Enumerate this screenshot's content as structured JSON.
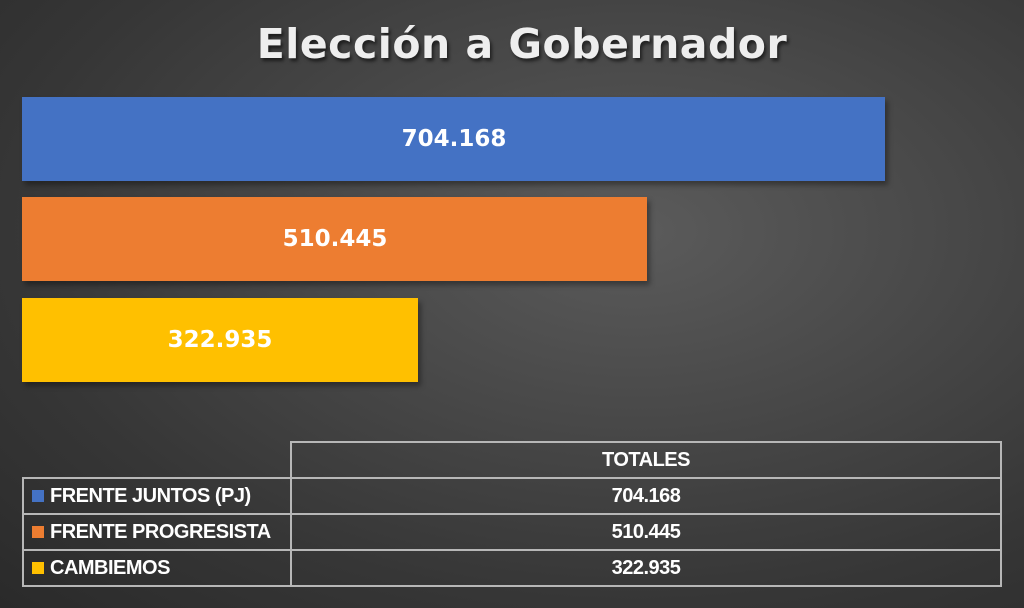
{
  "chart_data": {
    "type": "bar",
    "orientation": "horizontal",
    "title": "Elección a Gobernador",
    "categories": [
      "FRENTE JUNTOS (PJ)",
      "FRENTE PROGRESISTA",
      "CAMBIEMOS"
    ],
    "values": [
      704168,
      510445,
      322935
    ],
    "value_labels": [
      "704.168",
      "510.445",
      "322.935"
    ],
    "colors": [
      "#4472c4",
      "#ed7d31",
      "#ffc000"
    ],
    "xlim": [
      0,
      800000
    ],
    "grid": false,
    "legend_placement": "bottom (data table)"
  },
  "table": {
    "header": "TOTALES",
    "rows": [
      {
        "series": "FRENTE JUNTOS (PJ)",
        "total": "704.168",
        "color": "#4472c4"
      },
      {
        "series": "FRENTE PROGRESISTA",
        "total": "510.445",
        "color": "#ed7d31"
      },
      {
        "series": "CAMBIEMOS",
        "total": "322.935",
        "color": "#ffc000"
      }
    ]
  }
}
